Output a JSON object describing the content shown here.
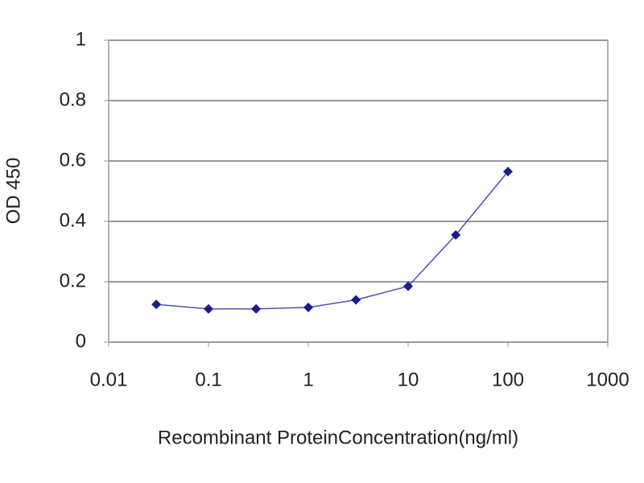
{
  "chart_data": {
    "type": "line",
    "x_label": "Recombinant ProteinConcentration(ng/ml)",
    "y_label": "OD 450",
    "x": [
      0.03,
      0.1,
      0.3,
      1,
      3,
      10,
      30,
      100
    ],
    "series": [
      {
        "color": "#1c1c8a",
        "values": [
          0.125,
          0.11,
          0.11,
          0.115,
          0.14,
          0.185,
          0.355,
          0.565
        ]
      }
    ],
    "xlim": [
      0.01,
      1000
    ],
    "xticks": [
      0.01,
      0.1,
      1,
      10,
      100,
      1000
    ],
    "xscale": "log",
    "ylim": [
      0,
      1
    ],
    "yticks": [
      0,
      0.2,
      0.4,
      0.6,
      0.8,
      1
    ],
    "grid": true
  }
}
